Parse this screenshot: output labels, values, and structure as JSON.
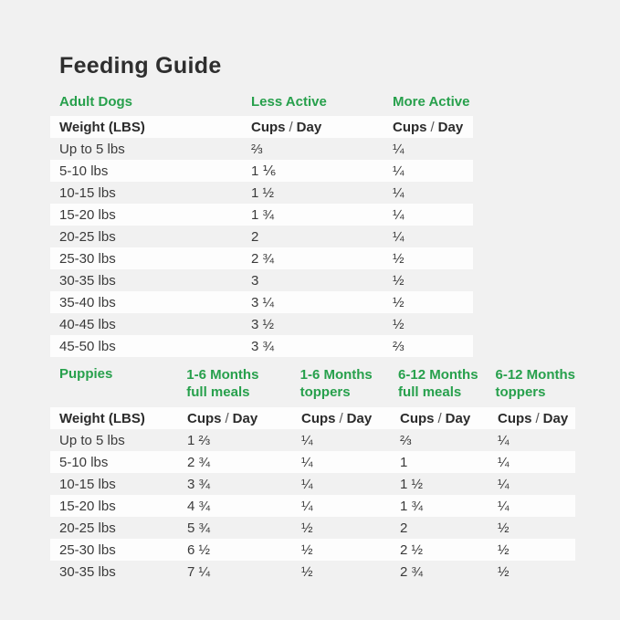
{
  "page": {
    "title": "Feeding Guide"
  },
  "colors": {
    "accent_green": "#27a04c",
    "page_bg": "#f1f1f1",
    "stripe_white": "#fdfdfd",
    "text_dark": "#2e2e2e"
  },
  "labels": {
    "cups": "Cups",
    "slash": "/",
    "day": "Day"
  },
  "adult_table": {
    "section_label": "Adult Dogs",
    "column_groups": [
      "Less Active",
      "More Active"
    ],
    "weight_header": "Weight (LBS)",
    "rows": [
      {
        "weight": "Up to 5 lbs",
        "less_active": "⅔",
        "more_active": "¼"
      },
      {
        "weight": "5-10 lbs",
        "less_active": "1 ⅙",
        "more_active": "¼"
      },
      {
        "weight": "10-15 lbs",
        "less_active": "1 ½",
        "more_active": "¼"
      },
      {
        "weight": "15-20 lbs",
        "less_active": "1 ¾",
        "more_active": "¼"
      },
      {
        "weight": "20-25 lbs",
        "less_active": "2",
        "more_active": "¼"
      },
      {
        "weight": "25-30 lbs",
        "less_active": "2 ¾",
        "more_active": "½"
      },
      {
        "weight": "30-35 lbs",
        "less_active": "3",
        "more_active": "½"
      },
      {
        "weight": "35-40 lbs",
        "less_active": "3 ¼",
        "more_active": "½"
      },
      {
        "weight": "40-45 lbs",
        "less_active": "3 ½",
        "more_active": "½"
      },
      {
        "weight": "45-50 lbs",
        "less_active": "3 ¾",
        "more_active": "⅔"
      }
    ]
  },
  "puppies_table": {
    "section_label": "Puppies",
    "column_groups": [
      {
        "line1": "1-6 Months",
        "line2": "full meals"
      },
      {
        "line1": "1-6 Months",
        "line2": "toppers"
      },
      {
        "line1": "6-12 Months",
        "line2": "full meals"
      },
      {
        "line1": "6-12 Months",
        "line2": "toppers"
      }
    ],
    "weight_header": "Weight (LBS)",
    "rows": [
      {
        "weight": "Up to 5 lbs",
        "values": [
          "1 ⅔",
          "¼",
          "⅔",
          "¼"
        ]
      },
      {
        "weight": "5-10 lbs",
        "values": [
          "2 ¾",
          "¼",
          "1",
          "¼"
        ]
      },
      {
        "weight": "10-15 lbs",
        "values": [
          "3 ¾",
          "¼",
          "1 ½",
          "¼"
        ]
      },
      {
        "weight": "15-20 lbs",
        "values": [
          "4 ¾",
          "¼",
          "1 ¾",
          "¼"
        ]
      },
      {
        "weight": "20-25 lbs",
        "values": [
          "5 ¾",
          "½",
          "2",
          "½"
        ]
      },
      {
        "weight": "25-30 lbs",
        "values": [
          "6 ½",
          "½",
          "2 ½",
          "½"
        ]
      },
      {
        "weight": "30-35 lbs",
        "values": [
          "7 ¼",
          "½",
          "2 ¾",
          "½"
        ]
      }
    ]
  }
}
